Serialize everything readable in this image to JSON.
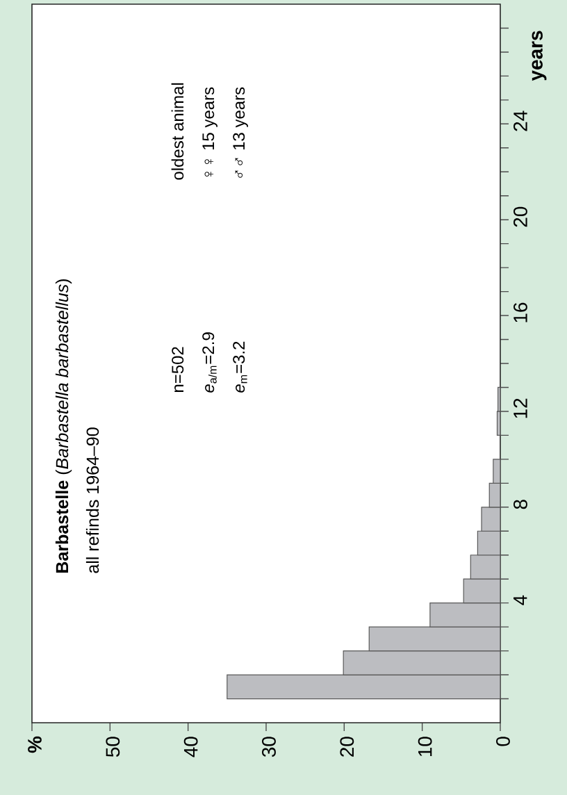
{
  "chart_data": {
    "type": "histogram",
    "orientation": "horizontal",
    "title": "**Barbastelle** (*Barbastella barbastellus*)",
    "subtitle": "all refinds 1964–90",
    "ylabel": "years",
    "annotations": [
      "n=502",
      "*e*$_{a/m}$=2.9",
      "*e*$_{m}$=3.2",
      "oldest animal",
      "♀♀ 15 years",
      "♂♂ 13 years"
    ],
    "bins": [
      0,
      1,
      2,
      3,
      4,
      5,
      6,
      7,
      8,
      9,
      10,
      11,
      12,
      13
    ],
    "values": [
      35,
      20.1,
      16.8,
      9.0,
      4.7,
      3.8,
      2.9,
      2.4,
      1.4,
      0.9,
      null,
      0.4,
      0.3
    ],
    "color": "#bcbdc1",
    "xlim": [
      60,
      0
    ],
    "ylim": [
      -1,
      29
    ],
    "xticks": [
      0,
      10,
      20,
      30,
      40,
      50,
      {
        "value": 60,
        "label": "%"
      }
    ],
    "yticks": [
      {
        "value": 0,
        "label": null
      },
      {
        "value": 1,
        "label": null
      },
      {
        "value": 2,
        "label": null
      },
      {
        "value": 3,
        "label": null
      },
      4,
      {
        "value": 5,
        "label": null
      },
      {
        "value": 6,
        "label": null
      },
      {
        "value": 7,
        "label": null
      },
      8,
      {
        "value": 9,
        "label": null
      },
      {
        "value": 10,
        "label": null
      },
      {
        "value": 11,
        "label": null
      },
      12,
      {
        "value": 13,
        "label": null
      },
      {
        "value": 14,
        "label": null
      },
      {
        "value": 15,
        "label": null
      },
      16,
      {
        "value": 17,
        "label": null
      },
      {
        "value": 18,
        "label": null
      },
      {
        "value": 19,
        "label": null
      },
      20,
      {
        "value": 21,
        "label": null
      },
      {
        "value": 22,
        "label": null
      },
      {
        "value": 23,
        "label": null
      },
      24,
      {
        "value": 25,
        "label": null
      },
      {
        "value": 26,
        "label": null
      },
      {
        "value": 27,
        "label": null
      },
      {
        "value": 28,
        "label": null
      }
    ]
  }
}
